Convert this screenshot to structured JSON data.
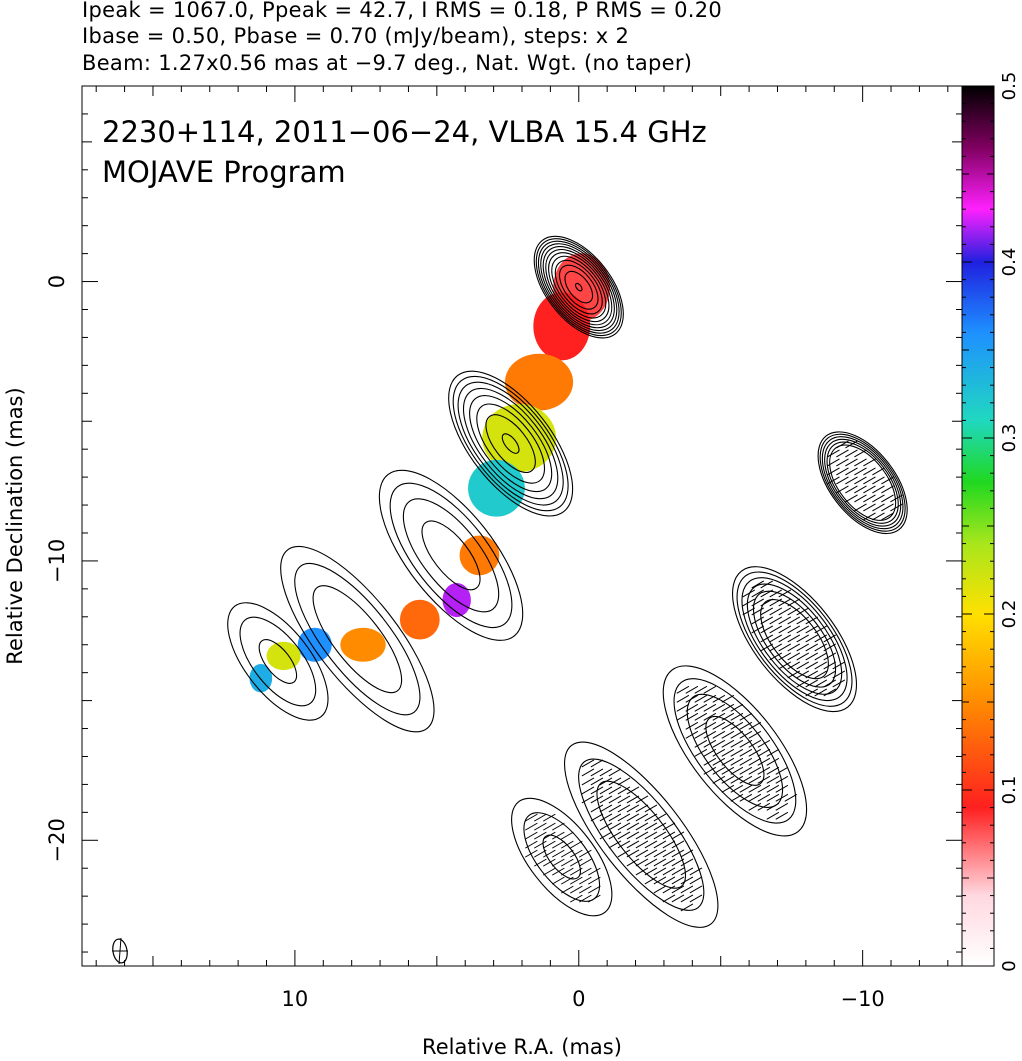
{
  "header": {
    "line1": "Ipeak = 1067.0, Ppeak = 42.7, I RMS = 0.18, P RMS = 0.20",
    "line2": "Ibase = 0.50, Pbase = 0.70 (mJy/beam), steps: x 2",
    "line3": "Beam: 1.27x0.56 mas at −9.7 deg., Nat. Wgt. (no taper)"
  },
  "overlay": {
    "line1": "2230+114, 2011−06−24, VLBA 15.4 GHz",
    "line2": "MOJAVE Program"
  },
  "chart_data": {
    "type": "heatmap",
    "xlabel": "Relative R.A. (mas)",
    "ylabel": "Relative Declination (mas)",
    "xlim": [
      17.5,
      -13.5
    ],
    "ylim": [
      -24.5,
      7
    ],
    "x_ticks": [
      {
        "value": 10,
        "label": "10"
      },
      {
        "value": 0,
        "label": "0"
      },
      {
        "value": -10,
        "label": "−10"
      }
    ],
    "y_ticks": [
      {
        "value": 0,
        "label": "0"
      },
      {
        "value": -10,
        "label": "−10"
      },
      {
        "value": -20,
        "label": "−20"
      }
    ],
    "colorbar": {
      "range": [
        0,
        0.5
      ],
      "ticks": [
        {
          "value": 0,
          "label": "0"
        },
        {
          "value": 0.1,
          "label": "0.1"
        },
        {
          "value": 0.2,
          "label": "0.2"
        },
        {
          "value": 0.3,
          "label": "0.3"
        },
        {
          "value": 0.4,
          "label": "0.4"
        },
        {
          "value": 0.5,
          "label": "0.5"
        }
      ]
    },
    "core": {
      "x": 0,
      "y": 0
    },
    "intensity_contour_levels_mJy_per_beam": [
      0.5,
      1,
      2,
      4,
      8,
      16,
      32,
      64,
      128,
      256,
      512,
      1024
    ],
    "contour_components": [
      {
        "x": 0,
        "y": -0.2,
        "peak": 1067,
        "major": 2.2,
        "minor": 1.2
      },
      {
        "x": 2.4,
        "y": -5.8,
        "peak": 70,
        "major": 3.2,
        "minor": 1.5
      },
      {
        "x": 4.5,
        "y": -9.8,
        "peak": 6,
        "major": 3.8,
        "minor": 1.6
      },
      {
        "x": 7.8,
        "y": -12.8,
        "peak": 4,
        "major": 4.2,
        "minor": 1.5
      },
      {
        "x": 10.6,
        "y": -13.6,
        "peak": 2.5,
        "major": 2.6,
        "minor": 1.2
      }
    ],
    "fractional_polarization": [
      {
        "x": -0.1,
        "y": -0.2,
        "frac": 0.08,
        "rx": 1.0,
        "ry": 1.2
      },
      {
        "x": 0.6,
        "y": -1.6,
        "frac": 0.09,
        "rx": 1.0,
        "ry": 1.2
      },
      {
        "x": 1.4,
        "y": -3.6,
        "frac": 0.14,
        "rx": 1.2,
        "ry": 1.0
      },
      {
        "x": 2.1,
        "y": -5.6,
        "frac": 0.22,
        "rx": 1.3,
        "ry": 1.2
      },
      {
        "x": 2.9,
        "y": -7.4,
        "frac": 0.32,
        "rx": 1.0,
        "ry": 1.0
      },
      {
        "x": 3.5,
        "y": -9.8,
        "frac": 0.14,
        "rx": 0.7,
        "ry": 0.7
      },
      {
        "x": 4.3,
        "y": -11.4,
        "frac": 0.42,
        "rx": 0.5,
        "ry": 0.6
      },
      {
        "x": 5.6,
        "y": -12.1,
        "frac": 0.13,
        "rx": 0.7,
        "ry": 0.7
      },
      {
        "x": 7.6,
        "y": -13.0,
        "frac": 0.15,
        "rx": 0.8,
        "ry": 0.6
      },
      {
        "x": 9.3,
        "y": -13.0,
        "frac": 0.36,
        "rx": 0.6,
        "ry": 0.6
      },
      {
        "x": 10.4,
        "y": -13.4,
        "frac": 0.22,
        "rx": 0.6,
        "ry": 0.5
      },
      {
        "x": 11.2,
        "y": -14.2,
        "frac": 0.34,
        "rx": 0.4,
        "ry": 0.5
      }
    ],
    "evpa_panel": {
      "offset_ra": -10,
      "offset_dec": -7,
      "tick_angle_deg": 30
    }
  }
}
